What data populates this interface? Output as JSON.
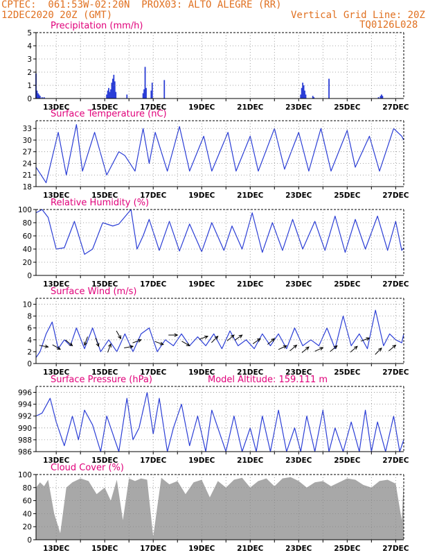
{
  "header": {
    "line1_left": "CPTEC:  061:53W-02:20N  PROX03: ALTO ALEGRE (RR)",
    "line2_left": "12DEC2020 20Z (GMT)",
    "line2_right": "Vertical Grid Line: 20Z",
    "line3_right": "TQ0126L028"
  },
  "colors": {
    "line": "#2a3dd6",
    "cloud": "#a8a8a8",
    "title": "#e0007a",
    "header": "#e07020"
  },
  "x_axis": {
    "ticks": [
      "13DEC",
      "15DEC",
      "17DEC",
      "19DEC",
      "21DEC",
      "23DEC",
      "25DEC",
      "27DEC"
    ],
    "start_hour": 0,
    "end_hour": 364
  },
  "chart_data": [
    {
      "id": "precip",
      "type": "bar",
      "title": "Precipitation (mm/h)",
      "ylim": [
        0,
        5
      ],
      "yticks": [
        0,
        1,
        2,
        3,
        4,
        5
      ],
      "points": [
        [
          0,
          1.9
        ],
        [
          1,
          0.6
        ],
        [
          2,
          0.4
        ],
        [
          3,
          0.3
        ],
        [
          4,
          0.2
        ],
        [
          6,
          0.1
        ],
        [
          8,
          0.1
        ],
        [
          70,
          0.3
        ],
        [
          71,
          0.6
        ],
        [
          72,
          0.8
        ],
        [
          73,
          0.5
        ],
        [
          74,
          0.7
        ],
        [
          75,
          1.2
        ],
        [
          76,
          1.5
        ],
        [
          77,
          1.8
        ],
        [
          78,
          1.3
        ],
        [
          79,
          0.5
        ],
        [
          90,
          0.3
        ],
        [
          106,
          0.4
        ],
        [
          107,
          0.7
        ],
        [
          108,
          2.4
        ],
        [
          109,
          0.8
        ],
        [
          114,
          0.6
        ],
        [
          115,
          1.2
        ],
        [
          127,
          1.4
        ],
        [
          262,
          0.3
        ],
        [
          263,
          0.8
        ],
        [
          264,
          1.2
        ],
        [
          265,
          1.0
        ],
        [
          266,
          0.6
        ],
        [
          267,
          0.3
        ],
        [
          274,
          0.2
        ],
        [
          275,
          0.1
        ],
        [
          290,
          1.5
        ],
        [
          339,
          0.1
        ],
        [
          341,
          0.2
        ],
        [
          342,
          0.3
        ],
        [
          343,
          0.2
        ]
      ]
    },
    {
      "id": "temp",
      "type": "line",
      "title": "Surface Temperature (nC)",
      "ylim": [
        18,
        35
      ],
      "yticks": [
        18,
        21,
        24,
        27,
        30,
        33
      ],
      "x": [
        0,
        10,
        22,
        30,
        40,
        46,
        58,
        70,
        82,
        88,
        98,
        106,
        112,
        118,
        130,
        142,
        152,
        166,
        174,
        190,
        198,
        212,
        220,
        236,
        246,
        260,
        270,
        282,
        292,
        308,
        316,
        330,
        340,
        354,
        362,
        364
      ],
      "y": [
        23,
        19,
        32,
        21,
        34,
        22,
        32,
        21,
        27,
        26,
        22,
        33,
        24,
        32,
        22,
        33.5,
        22,
        31,
        22,
        32,
        22,
        31,
        22,
        33,
        22.5,
        32,
        22,
        33,
        22,
        32.5,
        23,
        31,
        22,
        33,
        31,
        30
      ]
    },
    {
      "id": "rh",
      "type": "line",
      "title": "Relative Humidity (%)",
      "ylim": [
        0,
        100
      ],
      "yticks": [
        0,
        20,
        40,
        60,
        80,
        100
      ],
      "x": [
        0,
        6,
        12,
        20,
        28,
        38,
        48,
        56,
        66,
        76,
        82,
        94,
        100,
        106,
        112,
        122,
        132,
        142,
        152,
        164,
        174,
        186,
        194,
        204,
        214,
        224,
        234,
        244,
        254,
        264,
        276,
        286,
        296,
        306,
        316,
        326,
        338,
        348,
        356,
        362,
        364
      ],
      "y": [
        95,
        100,
        88,
        40,
        42,
        82,
        32,
        40,
        80,
        75,
        78,
        100,
        40,
        60,
        85,
        38,
        82,
        37,
        78,
        36,
        80,
        38,
        75,
        40,
        95,
        35,
        80,
        38,
        85,
        40,
        82,
        38,
        90,
        35,
        85,
        40,
        90,
        38,
        82,
        38,
        42
      ]
    },
    {
      "id": "wind",
      "type": "line",
      "title": "Surface Wind (m/s)",
      "ylim": [
        0,
        11
      ],
      "yticks": [
        0,
        2,
        4,
        6,
        8,
        10
      ],
      "x": [
        0,
        4,
        10,
        16,
        22,
        28,
        34,
        40,
        48,
        56,
        64,
        72,
        80,
        88,
        96,
        104,
        112,
        120,
        128,
        136,
        144,
        152,
        160,
        168,
        176,
        184,
        192,
        200,
        208,
        216,
        224,
        232,
        240,
        248,
        256,
        264,
        272,
        280,
        288,
        296,
        304,
        312,
        320,
        328,
        336,
        344,
        350,
        356,
        362,
        364
      ],
      "y": [
        1,
        2,
        5,
        7,
        2.5,
        4,
        3,
        6,
        2.5,
        6,
        2,
        4,
        2,
        5,
        2,
        5,
        6,
        2,
        4,
        3,
        5,
        3,
        4.5,
        3,
        5,
        2.5,
        5.5,
        3,
        4,
        2.5,
        5,
        3,
        5,
        2.5,
        6,
        3,
        4,
        3,
        6,
        2.5,
        8,
        3,
        5,
        2.5,
        9,
        3,
        5,
        4,
        3.5,
        5
      ],
      "barbs": [
        [
          12,
          2.8,
          280
        ],
        [
          24,
          2.4,
          300
        ],
        [
          36,
          3.0,
          310
        ],
        [
          48,
          3.1,
          20
        ],
        [
          62,
          2.9,
          340
        ],
        [
          74,
          3.3,
          200
        ],
        [
          84,
          4.2,
          330
        ],
        [
          96,
          2.9,
          260
        ],
        [
          104,
          4.0,
          250
        ],
        [
          126,
          3.2,
          290
        ],
        [
          140,
          4.8,
          270
        ],
        [
          152,
          3.0,
          300
        ],
        [
          170,
          4.6,
          250
        ],
        [
          180,
          4.6,
          225
        ],
        [
          196,
          4.8,
          230
        ],
        [
          204,
          4.8,
          235
        ],
        [
          222,
          4.2,
          235
        ],
        [
          236,
          4.2,
          230
        ],
        [
          248,
          3.0,
          245
        ],
        [
          258,
          3.1,
          230
        ],
        [
          270,
          2.8,
          230
        ],
        [
          284,
          2.7,
          245
        ],
        [
          298,
          3.0,
          230
        ],
        [
          318,
          2.9,
          230
        ],
        [
          330,
          4.3,
          250
        ],
        [
          342,
          2.6,
          225
        ],
        [
          356,
          3.1,
          230
        ]
      ]
    },
    {
      "id": "pres",
      "type": "line",
      "title": "Surface Pressure (hPa)",
      "note": "Model Altitude: 159.111 m",
      "ylim": [
        986,
        997
      ],
      "yticks": [
        986,
        988,
        990,
        992,
        994,
        996
      ],
      "x": [
        0,
        6,
        14,
        20,
        28,
        36,
        42,
        48,
        56,
        64,
        70,
        76,
        82,
        90,
        96,
        102,
        110,
        116,
        122,
        130,
        136,
        144,
        152,
        160,
        168,
        174,
        180,
        188,
        196,
        204,
        212,
        218,
        224,
        232,
        240,
        248,
        256,
        262,
        268,
        276,
        284,
        290,
        296,
        304,
        312,
        320,
        326,
        332,
        338,
        346,
        354,
        360,
        364
      ],
      "y": [
        992,
        992.5,
        995,
        991,
        987,
        992,
        988,
        993,
        990.5,
        986,
        992,
        989,
        986,
        995,
        988,
        990,
        996,
        989,
        995,
        986,
        990,
        994,
        987,
        992,
        986,
        993,
        990,
        986,
        992,
        986,
        990,
        986,
        992,
        986,
        993,
        986,
        990,
        986,
        992,
        986,
        993,
        986,
        990,
        986,
        991,
        986,
        993,
        986,
        991,
        986,
        992,
        986,
        988
      ]
    },
    {
      "id": "cloud",
      "type": "area",
      "title": "Cloud Cover (%)",
      "ylim": [
        0,
        100
      ],
      "yticks": [
        0,
        20,
        40,
        60,
        80,
        100
      ],
      "x": [
        0,
        4,
        8,
        12,
        18,
        24,
        30,
        36,
        44,
        52,
        60,
        68,
        74,
        80,
        86,
        92,
        98,
        104,
        110,
        116,
        124,
        132,
        140,
        148,
        156,
        164,
        172,
        180,
        188,
        196,
        204,
        212,
        220,
        228,
        236,
        244,
        252,
        260,
        268,
        276,
        284,
        292,
        300,
        308,
        316,
        324,
        332,
        340,
        348,
        356,
        362,
        364
      ],
      "y": [
        80,
        88,
        82,
        92,
        40,
        10,
        80,
        88,
        94,
        90,
        70,
        80,
        60,
        92,
        30,
        94,
        90,
        94,
        92,
        5,
        95,
        85,
        90,
        70,
        88,
        92,
        65,
        90,
        80,
        92,
        95,
        80,
        90,
        94,
        82,
        94,
        96,
        90,
        80,
        88,
        90,
        82,
        88,
        94,
        92,
        84,
        80,
        90,
        92,
        86,
        30,
        90
      ]
    }
  ]
}
